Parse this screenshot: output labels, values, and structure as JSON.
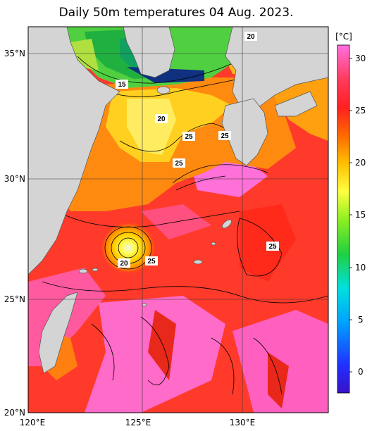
{
  "title": "Daily 50m temperatures 04 Aug. 2023.",
  "axes": {
    "lon_ticks": [
      "120°E",
      "125°E",
      "130°E"
    ],
    "lat_ticks": [
      "35°N",
      "30°N",
      "25°N",
      "20°N"
    ]
  },
  "colorbar": {
    "unit": "[°C]",
    "ticks": [
      "30",
      "25",
      "20",
      "15",
      "10",
      "5",
      "0"
    ]
  },
  "contour_labels": [
    {
      "id": "c1",
      "text": "20"
    },
    {
      "id": "c2",
      "text": "15"
    },
    {
      "id": "c3",
      "text": "20"
    },
    {
      "id": "c4",
      "text": "25"
    },
    {
      "id": "c5",
      "text": "25"
    },
    {
      "id": "c6",
      "text": "25"
    },
    {
      "id": "c7",
      "text": "25"
    },
    {
      "id": "c8",
      "text": "20"
    },
    {
      "id": "c9",
      "text": "25"
    }
  ],
  "colors": {
    "land": "#d4d4d4",
    "ocean_warm": "#ff3a2a",
    "ocean_hot": "#ff6bd0"
  }
}
